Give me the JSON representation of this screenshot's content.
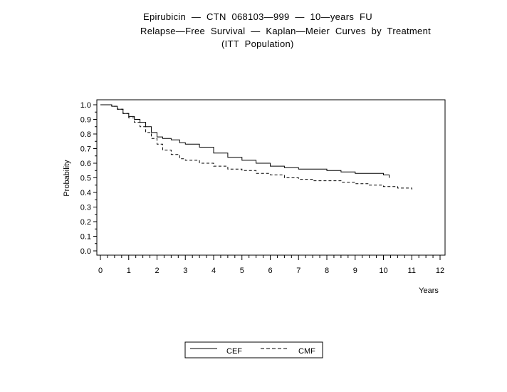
{
  "chart_data": {
    "type": "line",
    "title_lines": [
      "Epirubicin  —  CTN  068103—999  —  10—years  FU",
      "Relapse—Free  Survival  —  Kaplan—Meier  Curves  by  Treatment",
      "(ITT  Population)"
    ],
    "xlabel": "Years",
    "ylabel": "Probability",
    "xlim": [
      0,
      12
    ],
    "ylim": [
      0,
      1
    ],
    "x_ticks": [
      "0",
      "1",
      "2",
      "3",
      "4",
      "5",
      "6",
      "7",
      "8",
      "9",
      "10",
      "11",
      "12"
    ],
    "y_ticks": [
      "0.0",
      "0.1",
      "0.2",
      "0.3",
      "0.4",
      "0.5",
      "0.6",
      "0.7",
      "0.8",
      "0.9",
      "1.0"
    ],
    "legend_position": "bottom",
    "series": [
      {
        "name": "CEF",
        "style": "solid",
        "x": [
          0,
          0.4,
          0.6,
          0.8,
          1.0,
          1.2,
          1.4,
          1.6,
          1.8,
          2.0,
          2.2,
          2.5,
          2.8,
          3.0,
          3.5,
          4.0,
          4.5,
          5.0,
          5.5,
          6.0,
          6.5,
          7.0,
          7.5,
          8.0,
          8.5,
          9.0,
          9.5,
          10.0,
          10.2
        ],
        "y": [
          1.0,
          0.99,
          0.97,
          0.94,
          0.92,
          0.9,
          0.88,
          0.85,
          0.81,
          0.78,
          0.77,
          0.76,
          0.74,
          0.73,
          0.71,
          0.67,
          0.64,
          0.62,
          0.6,
          0.58,
          0.57,
          0.56,
          0.56,
          0.55,
          0.54,
          0.53,
          0.53,
          0.52,
          0.5
        ]
      },
      {
        "name": "CMF",
        "style": "dashed",
        "x": [
          0,
          0.4,
          0.6,
          0.8,
          1.0,
          1.2,
          1.4,
          1.6,
          1.8,
          2.0,
          2.2,
          2.5,
          2.8,
          3.0,
          3.5,
          4.0,
          4.5,
          5.0,
          5.5,
          6.0,
          6.5,
          7.0,
          7.5,
          8.0,
          8.5,
          9.0,
          9.5,
          10.0,
          10.5,
          11.0
        ],
        "y": [
          1.0,
          0.99,
          0.97,
          0.94,
          0.91,
          0.88,
          0.85,
          0.81,
          0.77,
          0.73,
          0.69,
          0.66,
          0.63,
          0.62,
          0.6,
          0.58,
          0.56,
          0.55,
          0.53,
          0.52,
          0.5,
          0.49,
          0.48,
          0.48,
          0.47,
          0.46,
          0.45,
          0.44,
          0.43,
          0.42
        ]
      }
    ]
  }
}
